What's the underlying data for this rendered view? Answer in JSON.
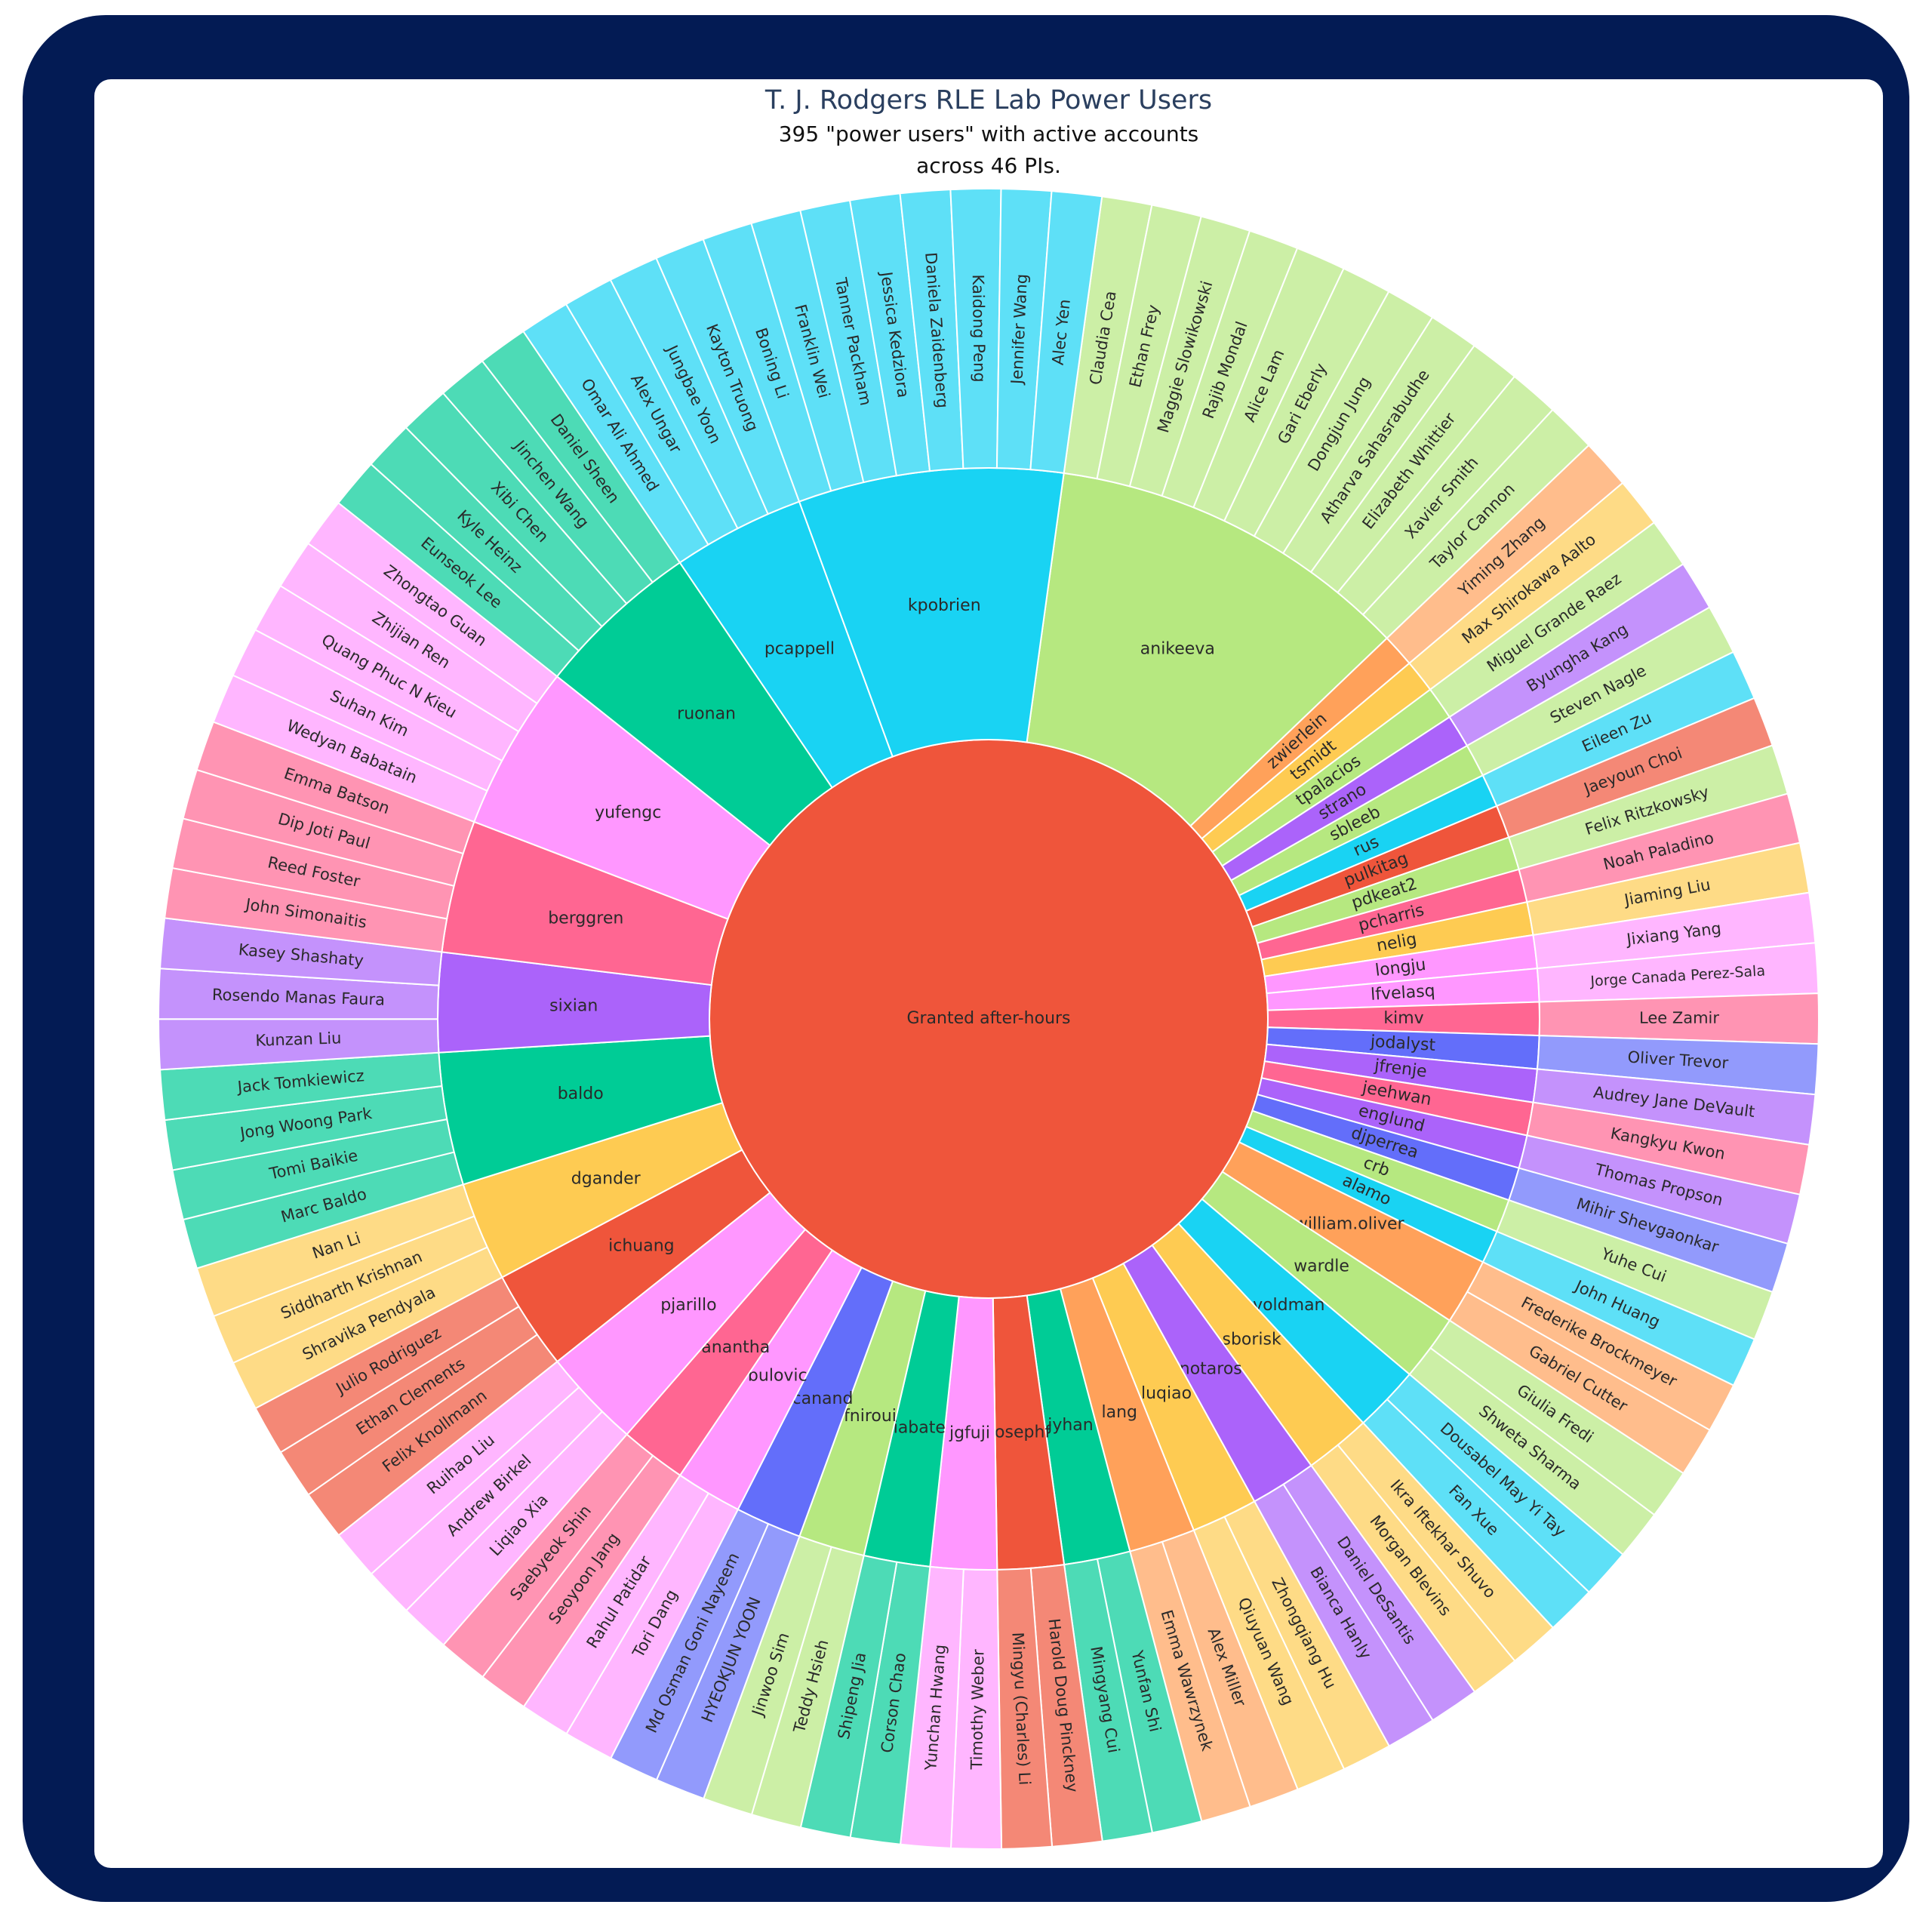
{
  "header": {
    "title": "T. J. Rodgers RLE Lab Power Users",
    "subtitle_line1": "395 \"power users\" with active accounts",
    "subtitle_line2": "across 46 PIs."
  },
  "chart_data": {
    "type": "sunburst",
    "root": {
      "label": "Granted after-hours",
      "color": "#ef553b"
    },
    "groups": [
      {
        "name": "anikeeva",
        "color": "#b6e880",
        "children": [
          "Claudia Cea",
          "Ethan Frey",
          "Maggie Slowikowski",
          "Rajib Mondal",
          "Alice Lam",
          "Gari Eberly",
          "Dongjun Jung",
          "Atharva Sahasrabudhe",
          "Elizabeth Whittier",
          "Xavier Smith",
          "Taylor Cannon"
        ]
      },
      {
        "name": "zwierlein",
        "color": "#ffa15a",
        "children": [
          "Yiming Zhang"
        ]
      },
      {
        "name": "tsmidt",
        "color": "#fecb52",
        "children": [
          "Max Shirokawa Aalto"
        ]
      },
      {
        "name": "tpalacios",
        "color": "#b6e880",
        "children": [
          "Miguel Grande Raez"
        ]
      },
      {
        "name": "strano",
        "color": "#ab63fa",
        "children": [
          "Byungha Kang"
        ]
      },
      {
        "name": "sbleeb",
        "color": "#b6e880",
        "children": [
          "Steven Nagle"
        ]
      },
      {
        "name": "rus",
        "color": "#19d3f3",
        "children": [
          "Eileen Zu"
        ]
      },
      {
        "name": "pulkitag",
        "color": "#ef553b",
        "children": [
          "Jaeyoun Choi"
        ]
      },
      {
        "name": "pdkeat2",
        "color": "#b6e880",
        "children": [
          "Felix Ritzkowsky"
        ]
      },
      {
        "name": "pcharris",
        "color": "#ff6692",
        "children": [
          "Noah Paladino"
        ]
      },
      {
        "name": "nelig",
        "color": "#fecb52",
        "children": [
          "Jiaming Liu"
        ]
      },
      {
        "name": "longju",
        "color": "#ff97ff",
        "children": [
          "Jixiang Yang"
        ]
      },
      {
        "name": "lfvelasq",
        "color": "#ff97ff",
        "children": [
          "Jorge Canada Perez-Sala"
        ]
      },
      {
        "name": "kimv",
        "color": "#ff6692",
        "children": [
          "Lee Zamir"
        ]
      },
      {
        "name": "jodalyst",
        "color": "#636efa",
        "children": [
          "Oliver Trevor"
        ]
      },
      {
        "name": "jfrenje",
        "color": "#ab63fa",
        "children": [
          "Audrey Jane DeVault"
        ]
      },
      {
        "name": "jeehwan",
        "color": "#ff6692",
        "children": [
          "Kangkyu Kwon"
        ]
      },
      {
        "name": "englund",
        "color": "#ab63fa",
        "children": [
          "Thomas Propson"
        ]
      },
      {
        "name": "djperrea",
        "color": "#636efa",
        "children": [
          "Mihir Shevgaonkar"
        ]
      },
      {
        "name": "crb",
        "color": "#b6e880",
        "children": [
          "Yuhe Cui"
        ]
      },
      {
        "name": "alamo",
        "color": "#19d3f3",
        "children": [
          "John Huang"
        ]
      },
      {
        "name": "william.oliver",
        "color": "#ffa15a",
        "children": [
          "Frederike Brockmeyer",
          "Gabriel Cutter"
        ]
      },
      {
        "name": "wardle",
        "color": "#b6e880",
        "children": [
          "Giulia Fredi",
          "Shweta Sharma"
        ]
      },
      {
        "name": "voldman",
        "color": "#19d3f3",
        "children": [
          "Dousabel May Yi Tay",
          "Fan Xue"
        ]
      },
      {
        "name": "sborisk",
        "color": "#fecb52",
        "children": [
          "Ikra Iftekhar Shuvo",
          "Morgan Blevins"
        ]
      },
      {
        "name": "notaros",
        "color": "#ab63fa",
        "children": [
          "Daniel DeSantis",
          "Bianca Hanly"
        ]
      },
      {
        "name": "luqiao",
        "color": "#fecb52",
        "children": [
          "Zhongqiang Hu",
          "Qiuyuan Wang"
        ]
      },
      {
        "name": "lang",
        "color": "#ffa15a",
        "children": [
          "Alex Miller",
          "Emma Wawrzynek"
        ]
      },
      {
        "name": "jyhan",
        "color": "#00cc96",
        "children": [
          "Yunfan Shi",
          "Mingyang Cui"
        ]
      },
      {
        "name": "josephf",
        "color": "#ef553b",
        "children": [
          "Harold Doug Pinckney",
          "Mingyu (Charles) Li"
        ]
      },
      {
        "name": "jgfuji",
        "color": "#ff97ff",
        "children": [
          "Timothy Weber",
          "Yunchan Hwang"
        ]
      },
      {
        "name": "iabate",
        "color": "#00cc96",
        "children": [
          "Corson Chao",
          "Shipeng Jia"
        ]
      },
      {
        "name": "fniroui",
        "color": "#b6e880",
        "children": [
          "Teddy Hsieh",
          "Jinwoo Sim"
        ]
      },
      {
        "name": "canand",
        "color": "#636efa",
        "children": [
          "HYEOKJUN YOON",
          "Md Osman Goni Nayeem"
        ]
      },
      {
        "name": "bulovic",
        "color": "#ff97ff",
        "children": [
          "Tori Dang",
          "Rahul Patidar"
        ]
      },
      {
        "name": "anantha",
        "color": "#ff6692",
        "children": [
          "Seoyoon Jang",
          "Saebyeok Shin"
        ]
      },
      {
        "name": "pjarillo",
        "color": "#ff97ff",
        "children": [
          "Liqiao Xia",
          "Andrew Birkel",
          "Ruihao Liu"
        ]
      },
      {
        "name": "ichuang",
        "color": "#ef553b",
        "children": [
          "Felix Knollmann",
          "Ethan Clements",
          "Julio Rodriguez"
        ]
      },
      {
        "name": "dgander",
        "color": "#fecb52",
        "children": [
          "Shravika Pendyala",
          "Siddharth Krishnan",
          "Nan Li"
        ]
      },
      {
        "name": "baldo",
        "color": "#00cc96",
        "children": [
          "Marc Baldo",
          "Tomi Baikie",
          "Jong Woong Park",
          "Jack Tomkiewicz"
        ]
      },
      {
        "name": "sixian",
        "color": "#ab63fa",
        "children": [
          "Kunzan Liu",
          "Rosendo Manas Faura",
          "Kasey Shashaty"
        ]
      },
      {
        "name": "berggren",
        "color": "#ff6692",
        "children": [
          "John Simonaitis",
          "Reed Foster",
          "Dip Joti Paul",
          "Emma Batson"
        ]
      },
      {
        "name": "yufengc",
        "color": "#ff97ff",
        "children": [
          "Wedyan Babatain",
          "Suhan Kim",
          "Quang Phuc N Kieu",
          "Zhijian Ren",
          "Zhongtao Guan"
        ]
      },
      {
        "name": "ruonan",
        "color": "#00cc96",
        "children": [
          "Eunseok Lee",
          "Kyle Heinz",
          "Xibi Chen",
          "Jinchen Wang",
          "Daniel Sheen"
        ]
      },
      {
        "name": "pcappell",
        "color": "#19d3f3",
        "children": [
          "Omar Ali Ahmed",
          "Alex Ungar",
          "Jungbae Yoon",
          "Kayton Truong"
        ]
      },
      {
        "name": "kpobrien",
        "color": "#19d3f3",
        "children": [
          "Boning Li",
          "Franklin Wei",
          "Tanner Packham",
          "Jessica Kedziora",
          "Daniela Zaidenberg",
          "Kaidong Peng",
          "Jennifer Wang",
          "Alec Yen"
        ]
      }
    ]
  }
}
